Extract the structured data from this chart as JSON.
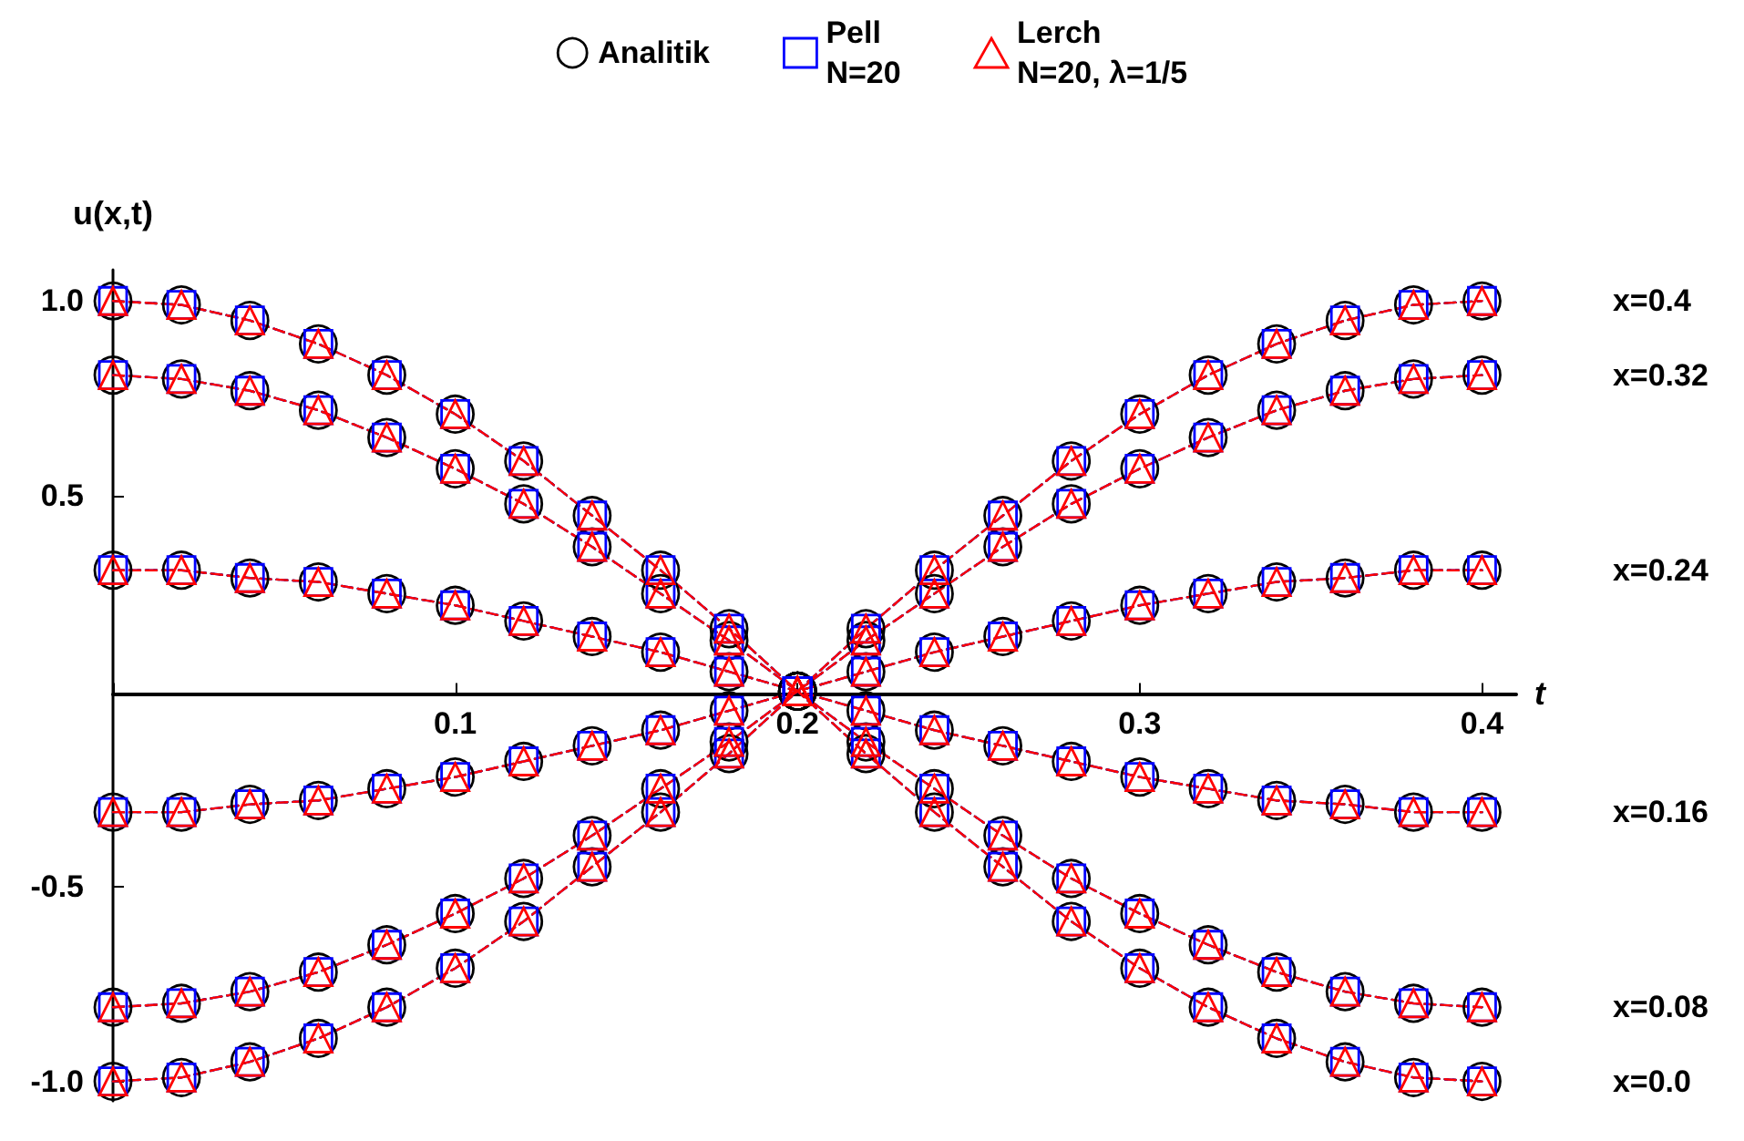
{
  "chart_data": {
    "type": "line",
    "xlabel": "t",
    "ylabel": "u(x,t)",
    "x": [
      0,
      0.02,
      0.04,
      0.06,
      0.08,
      0.1,
      0.12,
      0.14,
      0.16,
      0.18,
      0.2,
      0.22,
      0.24,
      0.26,
      0.28,
      0.3,
      0.32,
      0.34,
      0.36,
      0.38,
      0.4
    ],
    "xlim": [
      0,
      0.41
    ],
    "xticks": [
      {
        "value": 0,
        "label": null
      },
      0.1,
      0.2,
      0.3,
      0.4
    ],
    "ylim": [
      -1.05,
      1.08
    ],
    "yticks": [
      {
        "value": -1,
        "label": "-1.0"
      },
      -0.5,
      0.5,
      {
        "value": 1,
        "label": "1.0"
      }
    ],
    "legend": "top",
    "series": [
      {
        "name": "Analitik",
        "color": "#000000",
        "marker": "circle",
        "line_style": "dotted",
        "values": [
          1,
          0.99,
          0.95,
          0.89,
          0.81,
          0.71,
          0.59,
          0.45,
          0.31,
          0.16,
          0,
          -0.16,
          -0.31,
          -0.45,
          -0.59,
          -0.71,
          -0.81,
          -0.89,
          -0.95,
          -0.99,
          -1
        ]
      },
      {
        "color": "#000000",
        "marker": "circle",
        "line_style": "dotted",
        "values": [
          0.81,
          0.8,
          0.77,
          0.72,
          0.65,
          0.57,
          0.48,
          0.37,
          0.25,
          0.13,
          0,
          -0.13,
          -0.25,
          -0.37,
          -0.48,
          -0.57,
          -0.65,
          -0.72,
          -0.77,
          -0.8,
          -0.81
        ]
      },
      {
        "color": "#000000",
        "marker": "circle",
        "line_style": "dotted",
        "values": [
          0.31,
          0.31,
          0.29,
          0.28,
          0.25,
          0.22,
          0.18,
          0.14,
          0.1,
          0.05,
          0,
          -0.05,
          -0.1,
          -0.14,
          -0.18,
          -0.22,
          -0.25,
          -0.28,
          -0.29,
          -0.31,
          -0.31
        ]
      },
      {
        "color": "#000000",
        "marker": "circle",
        "line_style": "dotted",
        "values": [
          -0.31,
          -0.31,
          -0.29,
          -0.28,
          -0.25,
          -0.22,
          -0.18,
          -0.14,
          -0.1,
          -0.05,
          0,
          0.05,
          0.1,
          0.14,
          0.18,
          0.22,
          0.25,
          0.28,
          0.29,
          0.31,
          0.31
        ]
      },
      {
        "color": "#000000",
        "marker": "circle",
        "line_style": "dotted",
        "values": [
          -0.81,
          -0.8,
          -0.77,
          -0.72,
          -0.65,
          -0.57,
          -0.48,
          -0.37,
          -0.25,
          -0.13,
          0,
          0.13,
          0.25,
          0.37,
          0.48,
          0.57,
          0.65,
          0.72,
          0.77,
          0.8,
          0.81
        ]
      },
      {
        "color": "#000000",
        "marker": "circle",
        "line_style": "dotted",
        "values": [
          -1,
          -0.99,
          -0.95,
          -0.89,
          -0.81,
          -0.71,
          -0.59,
          -0.45,
          -0.31,
          -0.16,
          0,
          0.16,
          0.31,
          0.45,
          0.59,
          0.71,
          0.81,
          0.89,
          0.95,
          0.99,
          1
        ]
      },
      {
        "name": "Pell\nN=20",
        "color": "#0000ff",
        "marker": "square",
        "line_style": "dashed",
        "values": [
          1,
          0.99,
          0.95,
          0.89,
          0.81,
          0.71,
          0.59,
          0.45,
          0.31,
          0.16,
          0,
          -0.16,
          -0.31,
          -0.45,
          -0.59,
          -0.71,
          -0.81,
          -0.89,
          -0.95,
          -0.99,
          -1
        ]
      },
      {
        "color": "#0000ff",
        "marker": "square",
        "line_style": "dashed",
        "values": [
          0.81,
          0.8,
          0.77,
          0.72,
          0.65,
          0.57,
          0.48,
          0.37,
          0.25,
          0.13,
          0,
          -0.13,
          -0.25,
          -0.37,
          -0.48,
          -0.57,
          -0.65,
          -0.72,
          -0.77,
          -0.8,
          -0.81
        ]
      },
      {
        "color": "#0000ff",
        "marker": "square",
        "line_style": "dashed",
        "values": [
          0.31,
          0.31,
          0.29,
          0.28,
          0.25,
          0.22,
          0.18,
          0.14,
          0.1,
          0.05,
          0,
          -0.05,
          -0.1,
          -0.14,
          -0.18,
          -0.22,
          -0.25,
          -0.28,
          -0.29,
          -0.31,
          -0.31
        ]
      },
      {
        "color": "#0000ff",
        "marker": "square",
        "line_style": "dashed",
        "values": [
          -0.31,
          -0.31,
          -0.29,
          -0.28,
          -0.25,
          -0.22,
          -0.18,
          -0.14,
          -0.1,
          -0.05,
          0,
          0.05,
          0.1,
          0.14,
          0.18,
          0.22,
          0.25,
          0.28,
          0.29,
          0.31,
          0.31
        ]
      },
      {
        "color": "#0000ff",
        "marker": "square",
        "line_style": "dashed",
        "values": [
          -0.81,
          -0.8,
          -0.77,
          -0.72,
          -0.65,
          -0.57,
          -0.48,
          -0.37,
          -0.25,
          -0.13,
          0,
          0.13,
          0.25,
          0.37,
          0.48,
          0.57,
          0.65,
          0.72,
          0.77,
          0.8,
          0.81
        ]
      },
      {
        "color": "#0000ff",
        "marker": "square",
        "line_style": "dashed",
        "values": [
          -1,
          -0.99,
          -0.95,
          -0.89,
          -0.81,
          -0.71,
          -0.59,
          -0.45,
          -0.31,
          -0.16,
          0,
          0.16,
          0.31,
          0.45,
          0.59,
          0.71,
          0.81,
          0.89,
          0.95,
          0.99,
          1
        ]
      },
      {
        "name": "Lerch\nN=20, λ=1/5",
        "color": "#ff0000",
        "marker": "triangle",
        "line_style": "dashed",
        "values": [
          1,
          0.99,
          0.95,
          0.89,
          0.81,
          0.71,
          0.59,
          0.45,
          0.31,
          0.16,
          0,
          -0.16,
          -0.31,
          -0.45,
          -0.59,
          -0.71,
          -0.81,
          -0.89,
          -0.95,
          -0.99,
          -1
        ]
      },
      {
        "color": "#ff0000",
        "marker": "triangle",
        "line_style": "dashed",
        "values": [
          0.81,
          0.8,
          0.77,
          0.72,
          0.65,
          0.57,
          0.48,
          0.37,
          0.25,
          0.13,
          0,
          -0.13,
          -0.25,
          -0.37,
          -0.48,
          -0.57,
          -0.65,
          -0.72,
          -0.77,
          -0.8,
          -0.81
        ]
      },
      {
        "color": "#ff0000",
        "marker": "triangle",
        "line_style": "dashed",
        "values": [
          0.31,
          0.31,
          0.29,
          0.28,
          0.25,
          0.22,
          0.18,
          0.14,
          0.1,
          0.05,
          0,
          -0.05,
          -0.1,
          -0.14,
          -0.18,
          -0.22,
          -0.25,
          -0.28,
          -0.29,
          -0.31,
          -0.31
        ]
      },
      {
        "color": "#ff0000",
        "marker": "triangle",
        "line_style": "dashed",
        "values": [
          -0.31,
          -0.31,
          -0.29,
          -0.28,
          -0.25,
          -0.22,
          -0.18,
          -0.14,
          -0.1,
          -0.05,
          0,
          0.05,
          0.1,
          0.14,
          0.18,
          0.22,
          0.25,
          0.28,
          0.29,
          0.31,
          0.31
        ]
      },
      {
        "color": "#ff0000",
        "marker": "triangle",
        "line_style": "dashed",
        "values": [
          -0.81,
          -0.8,
          -0.77,
          -0.72,
          -0.65,
          -0.57,
          -0.48,
          -0.37,
          -0.25,
          -0.13,
          0,
          0.13,
          0.25,
          0.37,
          0.48,
          0.57,
          0.65,
          0.72,
          0.77,
          0.8,
          0.81
        ]
      },
      {
        "color": "#ff0000",
        "marker": "triangle",
        "line_style": "dashed",
        "values": [
          -1,
          -0.99,
          -0.95,
          -0.89,
          -0.81,
          -0.71,
          -0.59,
          -0.45,
          -0.31,
          -0.16,
          0,
          0.16,
          0.31,
          0.45,
          0.59,
          0.71,
          0.81,
          0.89,
          0.95,
          0.99,
          1
        ]
      }
    ],
    "annotations": [
      "x=0.4",
      "x=0.32",
      "x=0.24",
      "x=0.16",
      "x=0.08",
      "x=0.0"
    ]
  }
}
